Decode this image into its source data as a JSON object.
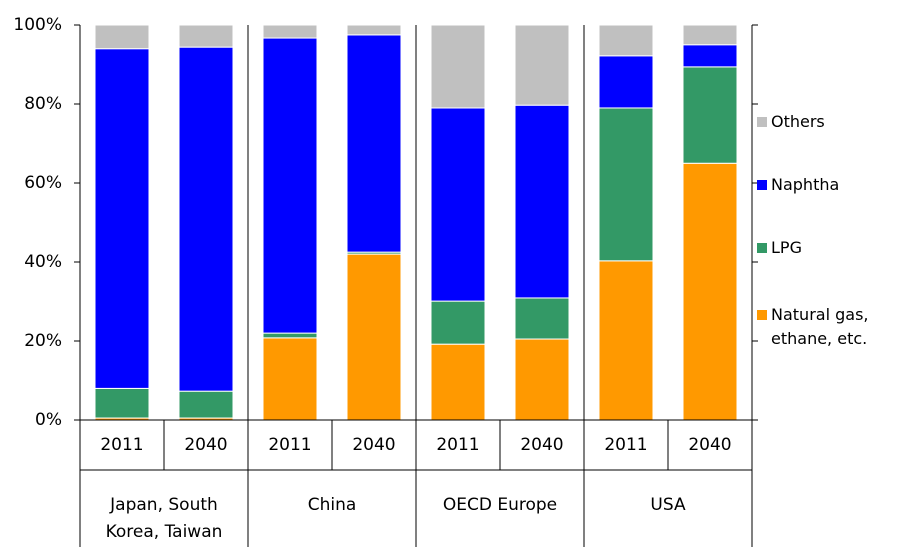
{
  "chart_data": {
    "type": "stacked_bar",
    "categories": [
      "2011",
      "2040",
      "2011",
      "2040",
      "2011",
      "2040",
      "2011",
      "2040"
    ],
    "groups": [
      "Japan, South Korea, Taiwan",
      "China",
      "OECD Europe",
      "USA"
    ],
    "series": [
      {
        "name": "Natural gas, ethane, etc.",
        "color": "#ff9900",
        "values": [
          0.5,
          0.5,
          20.8,
          42,
          19.2,
          20.5,
          40.3,
          65
        ]
      },
      {
        "name": "LPG",
        "color": "#339966",
        "values": [
          7.5,
          6.8,
          1.2,
          0.5,
          10.9,
          10.4,
          38.7,
          24.4
        ]
      },
      {
        "name": "Naphtha",
        "color": "#0000ff",
        "values": [
          86,
          87.1,
          74.7,
          55,
          48.9,
          48.8,
          13.2,
          5.6
        ]
      },
      {
        "name": "Others",
        "color": "#c0c0c0",
        "values": [
          6,
          5.6,
          3.3,
          2.5,
          21,
          20.3,
          7.8,
          5
        ]
      }
    ],
    "ylim": [
      0,
      100
    ],
    "yticks": [
      {
        "value": 0,
        "label": "0%"
      },
      {
        "value": 20,
        "label": "20%"
      },
      {
        "value": 40,
        "label": "40%"
      },
      {
        "value": 60,
        "label": "60%"
      },
      {
        "value": 80,
        "label": "80%"
      },
      {
        "value": 100,
        "label": "100%"
      }
    ]
  }
}
